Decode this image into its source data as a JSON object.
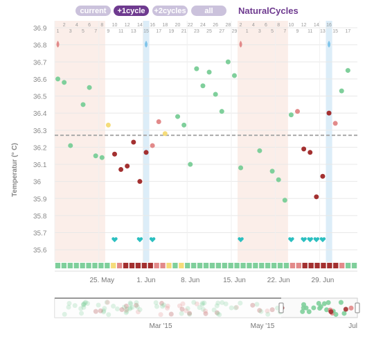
{
  "tabs": [
    {
      "label": "current",
      "active": false
    },
    {
      "label": "+1cycle",
      "active": true
    },
    {
      "label": "+2cycles",
      "active": false
    },
    {
      "label": "all",
      "active": false
    }
  ],
  "brand": "NaturalCycles",
  "colors": {
    "green": "#7fcf9b",
    "red": "#a33030",
    "pink": "#e28a8a",
    "yellow": "#f5dc7a",
    "teal": "#2bbfc0",
    "period": "#fbeee9",
    "ovulation": "#dcedf8",
    "tab_active": "#6e3a8f",
    "tab_inactive": "#cbc2dc",
    "coverline": "#aaaaaa"
  },
  "chart_data": {
    "type": "scatter",
    "ylabel": "Temperatur (° C)",
    "ylim": [
      35.55,
      36.95
    ],
    "yticks": [
      "36.9",
      "36.8",
      "36.7",
      "36.6",
      "36.5",
      "36.4",
      "36.3",
      "36.2",
      "36.1",
      "36",
      "35.9",
      "35.8",
      "35.7",
      "35.6"
    ],
    "coverline": 36.27,
    "top_day_labels": [
      2,
      4,
      6,
      8,
      10,
      12,
      14,
      16,
      18,
      20,
      22,
      24,
      26,
      28,
      2,
      4,
      6,
      8,
      10,
      12,
      14,
      16
    ],
    "bottom_day_labels": [
      1,
      3,
      5,
      7,
      9,
      11,
      13,
      15,
      17,
      19,
      21,
      23,
      25,
      27,
      29,
      1,
      3,
      5,
      7,
      9,
      11,
      13,
      15,
      17
    ],
    "date_labels": [
      "25. May",
      "1. Jun",
      "8. Jun",
      "15. Jun",
      "22. Jun",
      "29. Jun"
    ],
    "grid": true,
    "points": [
      {
        "day": 1,
        "temp": 36.6,
        "color": "green"
      },
      {
        "day": 2,
        "temp": 36.58,
        "color": "green"
      },
      {
        "day": 3,
        "temp": 36.21,
        "color": "green"
      },
      {
        "day": 5,
        "temp": 36.45,
        "color": "green"
      },
      {
        "day": 6,
        "temp": 36.55,
        "color": "green"
      },
      {
        "day": 7,
        "temp": 36.15,
        "color": "green"
      },
      {
        "day": 8,
        "temp": 36.14,
        "color": "green"
      },
      {
        "day": 9,
        "temp": 36.33,
        "color": "yellow"
      },
      {
        "day": 10,
        "temp": 36.16,
        "color": "red"
      },
      {
        "day": 11,
        "temp": 36.07,
        "color": "red"
      },
      {
        "day": 12,
        "temp": 36.09,
        "color": "red"
      },
      {
        "day": 13,
        "temp": 36.23,
        "color": "red"
      },
      {
        "day": 14,
        "temp": 36.0,
        "color": "red"
      },
      {
        "day": 15,
        "temp": 36.17,
        "color": "red"
      },
      {
        "day": 16,
        "temp": 36.21,
        "color": "pink"
      },
      {
        "day": 17,
        "temp": 36.35,
        "color": "pink"
      },
      {
        "day": 18,
        "temp": 36.28,
        "color": "yellow"
      },
      {
        "day": 20,
        "temp": 36.38,
        "color": "green"
      },
      {
        "day": 21,
        "temp": 36.33,
        "color": "green"
      },
      {
        "day": 22,
        "temp": 36.1,
        "color": "green"
      },
      {
        "day": 23,
        "temp": 36.66,
        "color": "green"
      },
      {
        "day": 24,
        "temp": 36.56,
        "color": "green"
      },
      {
        "day": 25,
        "temp": 36.64,
        "color": "green"
      },
      {
        "day": 26,
        "temp": 36.51,
        "color": "green"
      },
      {
        "day": 27,
        "temp": 36.41,
        "color": "green"
      },
      {
        "day": 28,
        "temp": 36.7,
        "color": "green"
      },
      {
        "day": 29,
        "temp": 36.62,
        "color": "green"
      },
      {
        "day": 30,
        "temp": 36.08,
        "color": "green"
      },
      {
        "day": 33,
        "temp": 36.18,
        "color": "green"
      },
      {
        "day": 35,
        "temp": 36.06,
        "color": "green"
      },
      {
        "day": 36,
        "temp": 36.01,
        "color": "green"
      },
      {
        "day": 37,
        "temp": 35.89,
        "color": "green"
      },
      {
        "day": 38,
        "temp": 36.39,
        "color": "green"
      },
      {
        "day": 39,
        "temp": 36.41,
        "color": "pink"
      },
      {
        "day": 40,
        "temp": 36.19,
        "color": "red"
      },
      {
        "day": 41,
        "temp": 36.17,
        "color": "red"
      },
      {
        "day": 42,
        "temp": 35.91,
        "color": "red"
      },
      {
        "day": 43,
        "temp": 36.03,
        "color": "red"
      },
      {
        "day": 44,
        "temp": 36.4,
        "color": "red"
      },
      {
        "day": 45,
        "temp": 36.34,
        "color": "pink"
      },
      {
        "day": 46,
        "temp": 36.53,
        "color": "green"
      },
      {
        "day": 47,
        "temp": 36.65,
        "color": "green"
      }
    ],
    "period_ranges": [
      [
        1,
        8
      ],
      [
        30,
        37
      ]
    ],
    "ovulation_days": [
      15,
      44
    ],
    "period_start_markers": [
      1,
      30
    ],
    "ovulation_markers": [
      15,
      44
    ],
    "heart_days": [
      10,
      14,
      16,
      30,
      38,
      40,
      41,
      42,
      43
    ],
    "day_squares": [
      "g",
      "g",
      "g",
      "g",
      "g",
      "g",
      "g",
      "g",
      "g",
      "y",
      "p",
      "r",
      "r",
      "r",
      "r",
      "r",
      "p",
      "p",
      "y",
      "g",
      "y",
      "g",
      "g",
      "g",
      "g",
      "g",
      "g",
      "g",
      "g",
      "g",
      "g",
      "g",
      "g",
      "g",
      "g",
      "g",
      "g",
      "g",
      "p",
      "p",
      "r",
      "r",
      "r",
      "r",
      "r",
      "r",
      "p",
      "g",
      "g"
    ],
    "navigator": {
      "labels": [
        "Mar '15",
        "May '15",
        "Jul"
      ]
    }
  }
}
